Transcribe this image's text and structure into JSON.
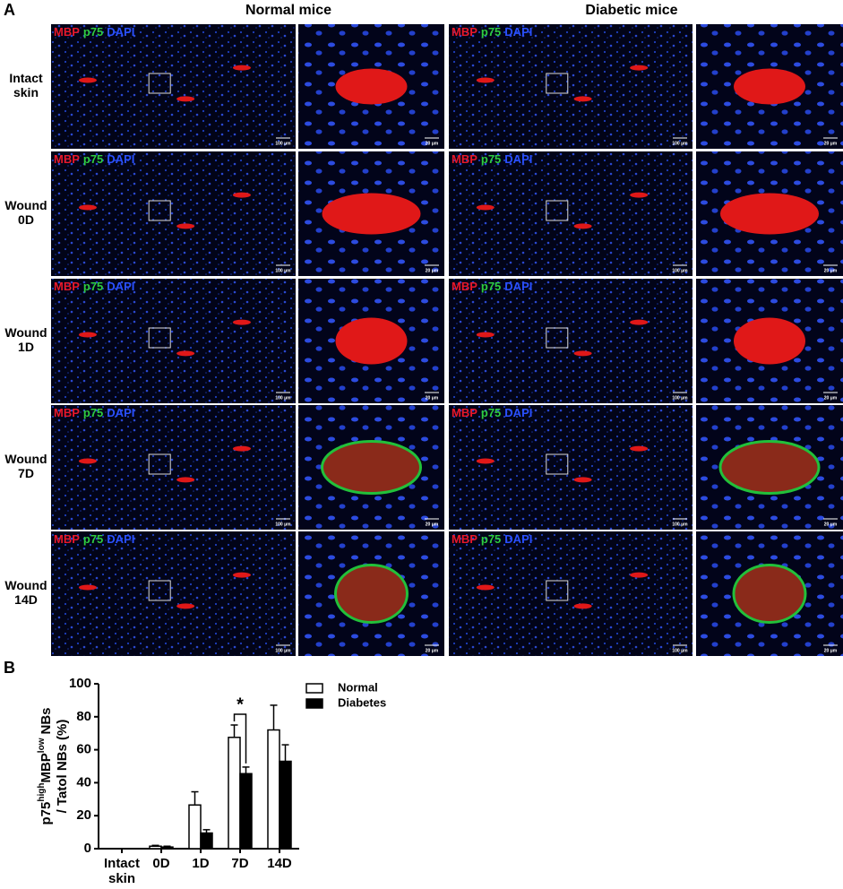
{
  "panel_a": {
    "letter": "A",
    "columns": [
      "Normal mice",
      "Diabetic mice"
    ],
    "rows": [
      "Intact skin",
      "Wound 0D",
      "Wound 1D",
      "Wound 7D",
      "Wound 14D"
    ],
    "stain_labels": [
      "MBP",
      "p75",
      "DAPI"
    ],
    "scale_bars": [
      "100 μm",
      "20 μm"
    ]
  },
  "chart_data": {
    "type": "bar",
    "letter": "B",
    "y_label": [
      "p75",
      "high",
      "MBP",
      "low",
      "NBs",
      "/ Tatol NBs (%)"
    ],
    "categories": [
      "Intact skin",
      "0D",
      "1D",
      "7D",
      "14D"
    ],
    "series": [
      {
        "name": "Normal",
        "color": "#ffffff",
        "values": [
          0,
          1.5,
          26.5,
          67.5,
          72
        ],
        "errors": [
          0,
          0.5,
          8,
          7.5,
          15
        ]
      },
      {
        "name": "Diabetes",
        "color": "#000000",
        "values": [
          0,
          1,
          9.5,
          45.5,
          53
        ],
        "errors": [
          0,
          0.5,
          2,
          4,
          10
        ]
      }
    ],
    "ylim": [
      0,
      100
    ],
    "yticks": [
      0,
      20,
      40,
      60,
      80,
      100
    ],
    "annotation": {
      "text": "*",
      "category": "7D"
    },
    "legend": "top-right"
  }
}
